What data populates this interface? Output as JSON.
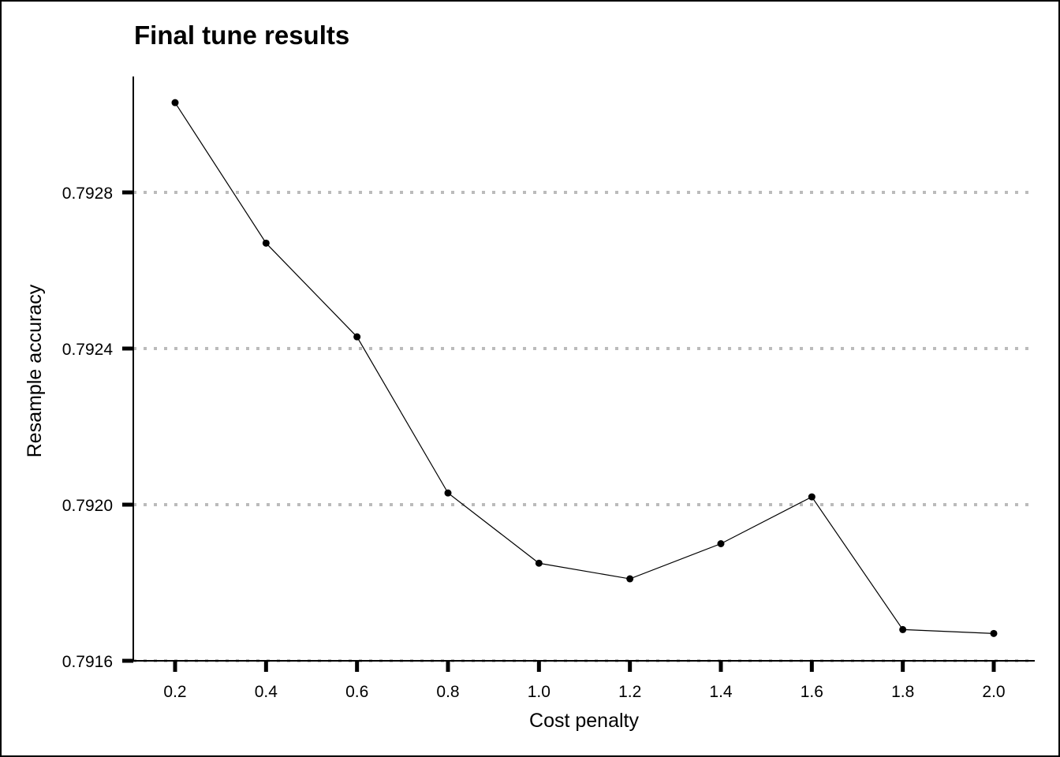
{
  "chart_data": {
    "type": "line",
    "title": "Final tune results",
    "xlabel": "Cost penalty",
    "ylabel": "Resample accuracy",
    "x": [
      0.2,
      0.4,
      0.6,
      0.8,
      1.0,
      1.2,
      1.4,
      1.6,
      1.8,
      2.0
    ],
    "x_tick_labels": [
      "0.2",
      "0.4",
      "0.6",
      "0.8",
      "1.0",
      "1.2",
      "1.4",
      "1.6",
      "1.8",
      "2.0"
    ],
    "y_ticks": [
      0.7916,
      0.792,
      0.7924,
      0.7928
    ],
    "y_tick_labels": [
      "0.7916",
      "0.7920",
      "0.7924",
      "0.7928"
    ],
    "series": [
      {
        "values": [
          0.79303,
          0.79267,
          0.79243,
          0.79203,
          0.79185,
          0.79181,
          0.7919,
          0.79202,
          0.79168,
          0.79167
        ]
      }
    ],
    "xlim": [
      0.1,
      2.1
    ],
    "ylim": [
      0.7916,
      0.79313
    ],
    "grid": "horizontal dotted",
    "colors": {
      "line": "#000000",
      "points": "#000000",
      "grid": "#bbbbbb",
      "axis": "#000000"
    }
  }
}
